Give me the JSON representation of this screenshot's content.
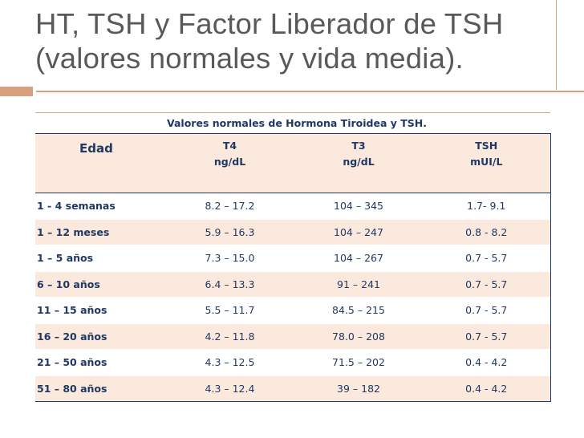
{
  "slide": {
    "title_line1": "HT, TSH y Factor Liberador de TSH",
    "title_line2": "(valores normales y vida media)."
  },
  "table": {
    "caption": "Valores normales de Hormona Tiroidea y TSH.",
    "headers": {
      "edad": "Edad",
      "t4_name": "T4",
      "t4_unit": "ng/dL",
      "t3_name": "T3",
      "t3_unit": "ng/dL",
      "tsh_name": "TSH",
      "tsh_unit": "mUI/L"
    },
    "rows": [
      {
        "edad": "1 - 4 semanas",
        "t4": "8.2 – 17.2",
        "t3": "104 – 345",
        "tsh": "1.7- 9.1"
      },
      {
        "edad": "1 – 12 meses",
        "t4": "5.9 – 16.3",
        "t3": "104 – 247",
        "tsh": "0.8 - 8.2"
      },
      {
        "edad": "1 – 5 años",
        "t4": "7.3 – 15.0",
        "t3": "104 – 267",
        "tsh": "0.7 - 5.7"
      },
      {
        "edad": "6 – 10 años",
        "t4": "6.4 – 13.3",
        "t3": "91 – 241",
        "tsh": "0.7 - 5.7"
      },
      {
        "edad": "11 – 15 años",
        "t4": "5.5 – 11.7",
        "t3": "84.5 – 215",
        "tsh": "0.7 - 5.7"
      },
      {
        "edad": "16 – 20 años",
        "t4": "4.2 – 11.8",
        "t3": "78.0 – 208",
        "tsh": "0.7 - 5.7"
      },
      {
        "edad": "21 – 50 años",
        "t4": "4.3 – 12.5",
        "t3": "71.5 – 202",
        "tsh": "0.4 - 4.2"
      },
      {
        "edad": "51 – 80 años",
        "t4": "4.3 – 12.4",
        "t3": "39 – 182",
        "tsh": "0.4 - 4.2"
      }
    ]
  },
  "colors": {
    "accent": "#d9a07f",
    "table_text": "#1f3864",
    "row_shade": "#fbe9dd",
    "title_text": "#595959"
  }
}
